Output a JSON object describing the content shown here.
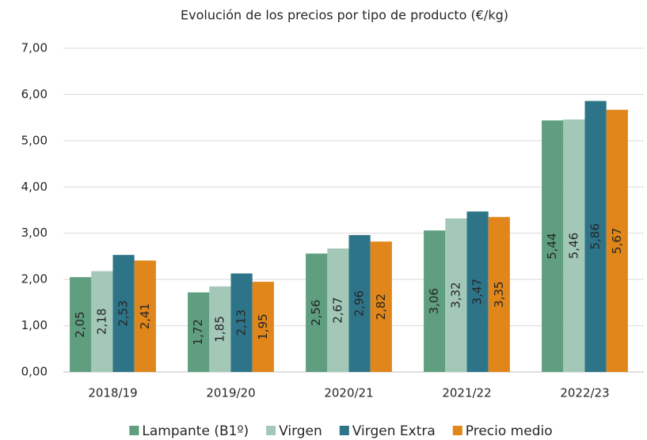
{
  "chart_data": {
    "type": "bar",
    "title": "Evolución de los precios por tipo de producto (€/kg)",
    "categories": [
      "2018/19",
      "2019/20",
      "2020/21",
      "2021/22",
      "2022/23"
    ],
    "series": [
      {
        "name": "Lampante (B1º)",
        "color": "#5f9e7f",
        "values": [
          2.05,
          1.72,
          2.56,
          3.06,
          5.44
        ],
        "value_labels": [
          "2,05",
          "1,72",
          "2,56",
          "3,06",
          "5,44"
        ]
      },
      {
        "name": "Virgen",
        "color": "#a3c8b8",
        "values": [
          2.18,
          1.85,
          2.67,
          3.32,
          5.46
        ],
        "value_labels": [
          "2,18",
          "1,85",
          "2,67",
          "3,32",
          "5,46"
        ]
      },
      {
        "name": "Virgen Extra",
        "color": "#2e7489",
        "values": [
          2.53,
          2.13,
          2.96,
          3.47,
          5.86
        ],
        "value_labels": [
          "2,53",
          "2,13",
          "2,96",
          "3,47",
          "5,86"
        ]
      },
      {
        "name": "Precio medio",
        "color": "#e0861a",
        "values": [
          2.41,
          1.95,
          2.82,
          3.35,
          5.67
        ],
        "value_labels": [
          "2,41",
          "1,95",
          "2,82",
          "3,35",
          "5,67"
        ]
      }
    ],
    "ylim": [
      0,
      7
    ],
    "yticks": [
      {
        "value": 0,
        "label": "0,00"
      },
      {
        "value": 1,
        "label": "1,00"
      },
      {
        "value": 2,
        "label": "2,00"
      },
      {
        "value": 3,
        "label": "3,00"
      },
      {
        "value": 4,
        "label": "4,00"
      },
      {
        "value": 5,
        "label": "5,00"
      },
      {
        "value": 6,
        "label": "6,00"
      },
      {
        "value": 7,
        "label": "7,00"
      }
    ],
    "grid": true,
    "legend": "bottom"
  }
}
